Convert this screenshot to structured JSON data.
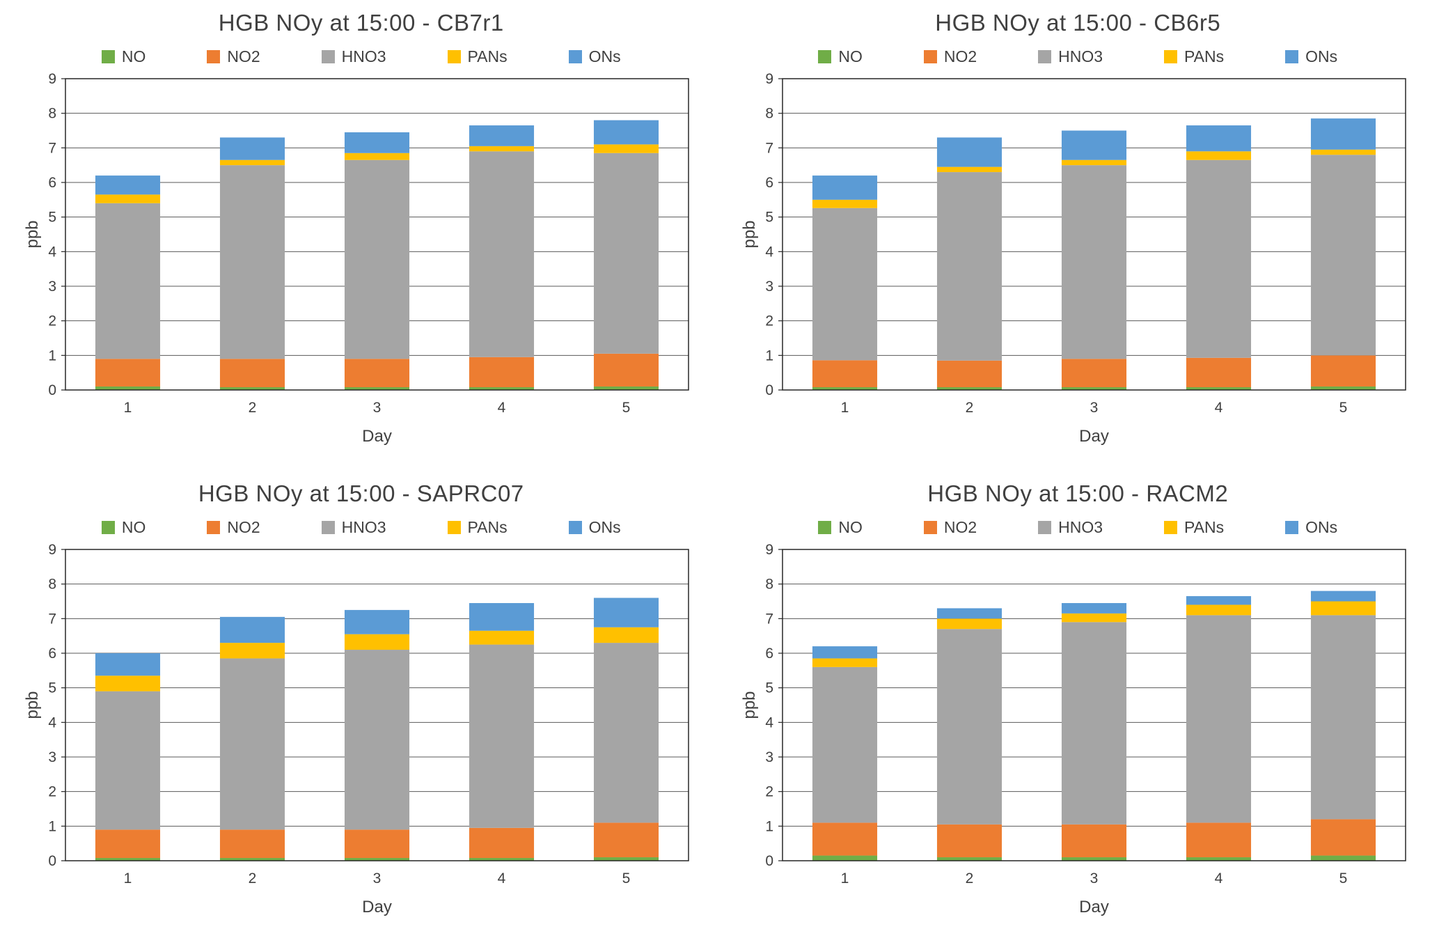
{
  "figure": {
    "background": "#ffffff",
    "text_color": "#404040",
    "gridline_color": "#595959",
    "border_color": "#262626"
  },
  "chart_data": [
    {
      "type": "bar",
      "stacked": true,
      "title": "HGB NOy at 15:00 - CB7r1",
      "xlabel": "Day",
      "ylabel": "ppb",
      "ylim": [
        0,
        9
      ],
      "ytick_step": 1,
      "grid": true,
      "legend_position": "top",
      "categories": [
        "1",
        "2",
        "3",
        "4",
        "5"
      ],
      "series": [
        {
          "name": "NO",
          "color": "#70AD47",
          "values": [
            0.1,
            0.08,
            0.08,
            0.08,
            0.1
          ]
        },
        {
          "name": "NO2",
          "color": "#ED7D31",
          "values": [
            0.8,
            0.82,
            0.82,
            0.87,
            0.95
          ]
        },
        {
          "name": "HNO3",
          "color": "#A5A5A5",
          "values": [
            4.5,
            5.6,
            5.75,
            5.95,
            5.8
          ]
        },
        {
          "name": "PANs",
          "color": "#FFC000",
          "values": [
            0.25,
            0.15,
            0.2,
            0.15,
            0.25
          ]
        },
        {
          "name": "ONs",
          "color": "#5B9BD5",
          "values": [
            0.55,
            0.65,
            0.6,
            0.6,
            0.7
          ]
        }
      ]
    },
    {
      "type": "bar",
      "stacked": true,
      "title": "HGB NOy at 15:00 - CB6r5",
      "xlabel": "Day",
      "ylabel": "ppb",
      "ylim": [
        0,
        9
      ],
      "ytick_step": 1,
      "grid": true,
      "legend_position": "top",
      "categories": [
        "1",
        "2",
        "3",
        "4",
        "5"
      ],
      "series": [
        {
          "name": "NO",
          "color": "#70AD47",
          "values": [
            0.08,
            0.08,
            0.08,
            0.08,
            0.1
          ]
        },
        {
          "name": "NO2",
          "color": "#ED7D31",
          "values": [
            0.78,
            0.77,
            0.82,
            0.85,
            0.9
          ]
        },
        {
          "name": "HNO3",
          "color": "#A5A5A5",
          "values": [
            4.4,
            5.45,
            5.6,
            5.72,
            5.8
          ]
        },
        {
          "name": "PANs",
          "color": "#FFC000",
          "values": [
            0.24,
            0.15,
            0.15,
            0.25,
            0.15
          ]
        },
        {
          "name": "ONs",
          "color": "#5B9BD5",
          "values": [
            0.7,
            0.85,
            0.85,
            0.75,
            0.9
          ]
        }
      ]
    },
    {
      "type": "bar",
      "stacked": true,
      "title": "HGB NOy at 15:00 - SAPRC07",
      "xlabel": "Day",
      "ylabel": "ppb",
      "ylim": [
        0,
        9
      ],
      "ytick_step": 1,
      "grid": true,
      "legend_position": "top",
      "categories": [
        "1",
        "2",
        "3",
        "4",
        "5"
      ],
      "series": [
        {
          "name": "NO",
          "color": "#70AD47",
          "values": [
            0.08,
            0.08,
            0.08,
            0.08,
            0.1
          ]
        },
        {
          "name": "NO2",
          "color": "#ED7D31",
          "values": [
            0.82,
            0.82,
            0.82,
            0.87,
            1.0
          ]
        },
        {
          "name": "HNO3",
          "color": "#A5A5A5",
          "values": [
            4.0,
            4.95,
            5.2,
            5.3,
            5.2
          ]
        },
        {
          "name": "PANs",
          "color": "#FFC000",
          "values": [
            0.45,
            0.45,
            0.45,
            0.4,
            0.45
          ]
        },
        {
          "name": "ONs",
          "color": "#5B9BD5",
          "values": [
            0.65,
            0.75,
            0.7,
            0.8,
            0.85
          ]
        }
      ]
    },
    {
      "type": "bar",
      "stacked": true,
      "title": "HGB NOy at 15:00 - RACM2",
      "xlabel": "Day",
      "ylabel": "ppb",
      "ylim": [
        0,
        9
      ],
      "ytick_step": 1,
      "grid": true,
      "legend_position": "top",
      "categories": [
        "1",
        "2",
        "3",
        "4",
        "5"
      ],
      "series": [
        {
          "name": "NO",
          "color": "#70AD47",
          "values": [
            0.15,
            0.1,
            0.1,
            0.1,
            0.15
          ]
        },
        {
          "name": "NO2",
          "color": "#ED7D31",
          "values": [
            0.95,
            0.95,
            0.95,
            1.0,
            1.05
          ]
        },
        {
          "name": "HNO3",
          "color": "#A5A5A5",
          "values": [
            4.5,
            5.65,
            5.85,
            6.0,
            5.9
          ]
        },
        {
          "name": "PANs",
          "color": "#FFC000",
          "values": [
            0.25,
            0.3,
            0.25,
            0.3,
            0.4
          ]
        },
        {
          "name": "ONs",
          "color": "#5B9BD5",
          "values": [
            0.35,
            0.3,
            0.3,
            0.25,
            0.3
          ]
        }
      ]
    }
  ]
}
